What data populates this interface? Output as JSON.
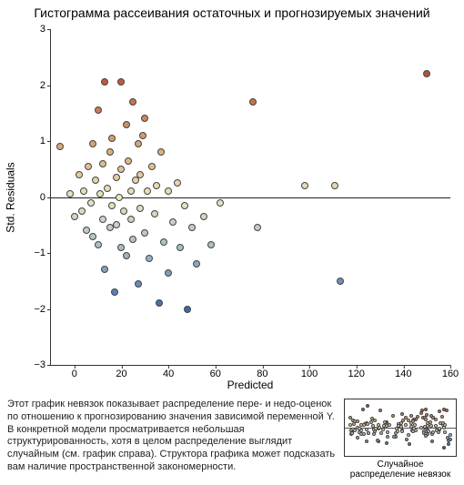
{
  "title": "Гистограмма рассеивания остаточных и прогнозируемых значений",
  "chart": {
    "type": "scatter",
    "xlabel": "Predicted",
    "ylabel": "Std. Residuals",
    "xlim": [
      -10,
      160
    ],
    "ylim": [
      -3,
      3
    ],
    "xticks": [
      0,
      20,
      40,
      60,
      80,
      100,
      120,
      140,
      160
    ],
    "yticks": [
      -3,
      -2,
      -1,
      0,
      1,
      2,
      3
    ],
    "xtick_prefix_spacing": true,
    "background_color": "#ffffff",
    "axis_color": "#333333",
    "zero_line": true,
    "marker_size": 8,
    "marker_border": "#444444",
    "label_fontsize": 12,
    "tick_fontsize": 11,
    "title_fontsize": 14,
    "color_stops": [
      {
        "v": -2.0,
        "c": "#3a6aa8"
      },
      {
        "v": -1.0,
        "c": "#9fb8c7"
      },
      {
        "v": 0.0,
        "c": "#e9e7bf"
      },
      {
        "v": 1.0,
        "c": "#d9a06b"
      },
      {
        "v": 2.2,
        "c": "#b6523a"
      }
    ],
    "points": [
      {
        "x": -6,
        "y": 0.9
      },
      {
        "x": -2,
        "y": 0.05
      },
      {
        "x": 0,
        "y": -0.35
      },
      {
        "x": 2,
        "y": 0.4
      },
      {
        "x": 3,
        "y": -0.25
      },
      {
        "x": 4,
        "y": 0.1
      },
      {
        "x": 5,
        "y": -0.6
      },
      {
        "x": 6,
        "y": 0.55
      },
      {
        "x": 7,
        "y": -0.1
      },
      {
        "x": 8,
        "y": 0.95
      },
      {
        "x": 8,
        "y": -0.7
      },
      {
        "x": 9,
        "y": 0.3
      },
      {
        "x": 10,
        "y": -0.85
      },
      {
        "x": 10,
        "y": 1.55
      },
      {
        "x": 11,
        "y": 0.05
      },
      {
        "x": 12,
        "y": -0.4
      },
      {
        "x": 12,
        "y": 0.6
      },
      {
        "x": 13,
        "y": -1.3
      },
      {
        "x": 13,
        "y": 2.05
      },
      {
        "x": 14,
        "y": 0.15
      },
      {
        "x": 15,
        "y": -0.55
      },
      {
        "x": 15,
        "y": 0.8
      },
      {
        "x": 16,
        "y": -0.15
      },
      {
        "x": 16,
        "y": 1.05
      },
      {
        "x": 17,
        "y": -1.7
      },
      {
        "x": 18,
        "y": 0.35
      },
      {
        "x": 18,
        "y": -0.5
      },
      {
        "x": 19,
        "y": 0.0
      },
      {
        "x": 20,
        "y": 2.05
      },
      {
        "x": 20,
        "y": -0.9
      },
      {
        "x": 20,
        "y": 0.5
      },
      {
        "x": 21,
        "y": -0.25
      },
      {
        "x": 22,
        "y": 1.3
      },
      {
        "x": 22,
        "y": -1.05
      },
      {
        "x": 23,
        "y": 0.65
      },
      {
        "x": 24,
        "y": -0.4
      },
      {
        "x": 24,
        "y": 0.1
      },
      {
        "x": 25,
        "y": 1.7
      },
      {
        "x": 25,
        "y": -0.75
      },
      {
        "x": 26,
        "y": 0.3
      },
      {
        "x": 27,
        "y": -1.55
      },
      {
        "x": 27,
        "y": 0.95
      },
      {
        "x": 28,
        "y": -0.2
      },
      {
        "x": 28,
        "y": 0.4
      },
      {
        "x": 29,
        "y": 1.1
      },
      {
        "x": 30,
        "y": -0.65
      },
      {
        "x": 30,
        "y": 1.4
      },
      {
        "x": 31,
        "y": 0.1
      },
      {
        "x": 32,
        "y": -1.1
      },
      {
        "x": 33,
        "y": 0.55
      },
      {
        "x": 34,
        "y": -0.3
      },
      {
        "x": 35,
        "y": 0.2
      },
      {
        "x": 36,
        "y": -1.9
      },
      {
        "x": 37,
        "y": 0.8
      },
      {
        "x": 38,
        "y": -0.8
      },
      {
        "x": 40,
        "y": 0.1
      },
      {
        "x": 40,
        "y": -1.35
      },
      {
        "x": 42,
        "y": -0.45
      },
      {
        "x": 44,
        "y": 0.25
      },
      {
        "x": 45,
        "y": -0.9
      },
      {
        "x": 47,
        "y": -0.15
      },
      {
        "x": 48,
        "y": -2.0
      },
      {
        "x": 50,
        "y": -0.55
      },
      {
        "x": 52,
        "y": -1.2
      },
      {
        "x": 55,
        "y": -0.35
      },
      {
        "x": 58,
        "y": -0.85
      },
      {
        "x": 62,
        "y": -0.1
      },
      {
        "x": 76,
        "y": 1.7
      },
      {
        "x": 78,
        "y": -0.55
      },
      {
        "x": 98,
        "y": 0.2
      },
      {
        "x": 111,
        "y": 0.2
      },
      {
        "x": 113,
        "y": -1.5
      },
      {
        "x": 150,
        "y": 2.2
      }
    ]
  },
  "description": "Этот график невязок показывает распределение пере- и недо-оценок по отношению к прогнозированию значения зависимой переменной Y. В конкретной модели просматривается небольшая структурированность, хотя в целом распределение выглядит случайным (см. график справа). Структора графика может подсказать вам наличие пространственной закономерности.",
  "mini": {
    "label": "Случайное распределение невязок",
    "xlim": [
      0,
      1
    ],
    "ylim": [
      -3,
      3
    ],
    "n": 140,
    "seed": 12345,
    "marker_size": 4
  }
}
